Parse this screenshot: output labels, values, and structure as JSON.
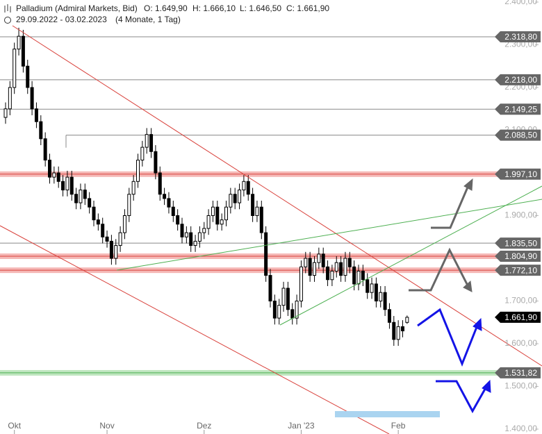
{
  "chart_data": {
    "type": "candlestick",
    "title": "Palladium (Admiral Markets, Bid)",
    "ohlc_header": [
      "O: 1.649,90",
      "H: 1.666,10",
      "L: 1.646,50",
      "C: 1.661,90"
    ],
    "subtitle": "29.09.2022 - 03.02.2023",
    "period": "(4 Monate, 1 Tag)",
    "categories": [
      null,
      null,
      "Okt",
      null,
      null,
      null,
      null,
      null,
      null,
      null,
      null,
      null,
      null,
      null,
      null,
      null,
      null,
      null,
      null,
      null,
      null,
      null,
      null,
      "Nov",
      null,
      null,
      null,
      null,
      null,
      null,
      null,
      null,
      null,
      null,
      null,
      null,
      null,
      null,
      null,
      null,
      null,
      null,
      null,
      null,
      null,
      "Dez",
      null,
      null,
      null,
      null,
      null,
      null,
      null,
      null,
      null,
      null,
      null,
      null,
      null,
      null,
      null,
      null,
      null,
      null,
      null,
      null,
      null,
      "Jan '23",
      null,
      null,
      null,
      null,
      null,
      null,
      null,
      null,
      null,
      null,
      null,
      null,
      null,
      null,
      null,
      null,
      null,
      null,
      null,
      null,
      null,
      "Feb",
      null,
      null
    ],
    "open": [
      2130,
      2150,
      2200,
      2290,
      2320,
      2250,
      2200,
      2150,
      2120,
      2080,
      2030,
      1990,
      2000,
      1980,
      1960,
      1990,
      1950,
      1930,
      1960,
      1940,
      1920,
      1890,
      1880,
      1850,
      1840,
      1800,
      1830,
      1860,
      1900,
      1950,
      1980,
      2030,
      2060,
      2090,
      2050,
      2000,
      1950,
      1940,
      1920,
      1900,
      1880,
      1850,
      1860,
      1830,
      1840,
      1860,
      1870,
      1900,
      1920,
      1880,
      1890,
      1920,
      1950,
      1930,
      1960,
      1980,
      1950,
      1900,
      1920,
      1860,
      1760,
      1700,
      1660,
      1690,
      1730,
      1680,
      1660,
      1700,
      1780,
      1800,
      1760,
      1790,
      1810,
      1780,
      1750,
      1770,
      1790,
      1760,
      1800,
      1780,
      1740,
      1770,
      1750,
      1720,
      1740,
      1700,
      1720,
      1680,
      1650,
      1610,
      1640,
      1649.9
    ],
    "high": [
      2165,
      2215,
      2305,
      2340,
      2335,
      2265,
      2215,
      2165,
      2135,
      2095,
      2045,
      2015,
      2015,
      1995,
      2005,
      2005,
      1965,
      1975,
      1975,
      1955,
      1935,
      1905,
      1895,
      1865,
      1855,
      1845,
      1875,
      1915,
      1965,
      1995,
      2045,
      2075,
      2105,
      2105,
      2065,
      2015,
      1965,
      1955,
      1935,
      1915,
      1895,
      1875,
      1875,
      1855,
      1875,
      1885,
      1915,
      1935,
      1935,
      1905,
      1935,
      1965,
      1965,
      1975,
      1995,
      1995,
      1965,
      1935,
      1935,
      1875,
      1775,
      1715,
      1705,
      1745,
      1745,
      1695,
      1715,
      1795,
      1815,
      1815,
      1805,
      1825,
      1825,
      1795,
      1785,
      1805,
      1805,
      1815,
      1815,
      1795,
      1785,
      1785,
      1765,
      1755,
      1755,
      1735,
      1735,
      1695,
      1665,
      1655,
      1655,
      1666.1
    ],
    "low": [
      2115,
      2135,
      2185,
      2275,
      2235,
      2185,
      2135,
      2105,
      2065,
      2015,
      1975,
      1975,
      1965,
      1945,
      1945,
      1935,
      1915,
      1915,
      1925,
      1905,
      1875,
      1865,
      1835,
      1825,
      1785,
      1785,
      1815,
      1845,
      1885,
      1935,
      1965,
      2015,
      2045,
      2035,
      1985,
      1935,
      1925,
      1905,
      1885,
      1865,
      1835,
      1835,
      1815,
      1815,
      1825,
      1845,
      1855,
      1885,
      1865,
      1865,
      1875,
      1905,
      1915,
      1915,
      1945,
      1935,
      1885,
      1885,
      1845,
      1745,
      1685,
      1645,
      1645,
      1675,
      1665,
      1645,
      1645,
      1685,
      1765,
      1745,
      1745,
      1775,
      1765,
      1735,
      1735,
      1755,
      1745,
      1745,
      1765,
      1725,
      1725,
      1735,
      1705,
      1705,
      1685,
      1685,
      1665,
      1635,
      1595,
      1595,
      1615,
      1646.5
    ],
    "close": [
      2150,
      2200,
      2290,
      2320,
      2250,
      2200,
      2150,
      2120,
      2080,
      2030,
      1990,
      2000,
      1980,
      1960,
      1990,
      1950,
      1930,
      1960,
      1940,
      1920,
      1890,
      1880,
      1850,
      1840,
      1800,
      1830,
      1860,
      1900,
      1950,
      1980,
      2030,
      2060,
      2090,
      2050,
      2000,
      1950,
      1940,
      1920,
      1900,
      1880,
      1850,
      1860,
      1830,
      1840,
      1860,
      1870,
      1900,
      1920,
      1880,
      1890,
      1920,
      1950,
      1930,
      1960,
      1980,
      1950,
      1900,
      1920,
      1860,
      1760,
      1700,
      1660,
      1690,
      1730,
      1680,
      1660,
      1700,
      1780,
      1800,
      1760,
      1790,
      1810,
      1780,
      1750,
      1770,
      1790,
      1760,
      1800,
      1780,
      1740,
      1770,
      1750,
      1720,
      1740,
      1700,
      1720,
      1680,
      1650,
      1610,
      1640,
      1630,
      1661.9
    ],
    "up_color": "#ffffff",
    "down_color": "#000000",
    "ylim": [
      1400,
      2400
    ],
    "yticks": [
      {
        "value": 1400,
        "label": "1.400,00"
      },
      {
        "value": 1500,
        "label": "1.500,00"
      },
      {
        "value": 1600,
        "label": "1.600,00"
      },
      {
        "value": 1700,
        "label": "1.700,00"
      },
      {
        "value": 1900,
        "label": "1.900,00"
      },
      {
        "value": 2100,
        "label": "2.100,00"
      },
      {
        "value": 2200,
        "label": "2.200,00"
      },
      {
        "value": 2300,
        "label": "2.300,00"
      },
      {
        "value": 2400,
        "label": "2.400,00"
      }
    ],
    "levels": [
      {
        "value": 2318.8,
        "label": "2.318,80",
        "style": "gray"
      },
      {
        "value": 2218,
        "label": "2.218,00",
        "style": "gray"
      },
      {
        "value": 2149.25,
        "label": "2.149,25",
        "style": "gray"
      },
      {
        "value": 2088.5,
        "label": "2.088,50",
        "style": "gray"
      },
      {
        "value": 1997.1,
        "label": "1.997,10",
        "style": "red"
      },
      {
        "value": 1835.5,
        "label": "1.835,50",
        "style": "gray"
      },
      {
        "value": 1804.9,
        "label": "1.804,90",
        "style": "red"
      },
      {
        "value": 1772.1,
        "label": "1.772,10",
        "style": "red"
      },
      {
        "value": 1661.9,
        "label": "1.661,90",
        "style": "current"
      },
      {
        "value": 1531.82,
        "label": "1.531,82",
        "style": "green"
      }
    ]
  }
}
